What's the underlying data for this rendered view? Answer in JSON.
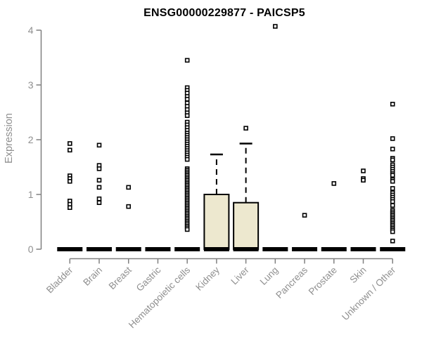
{
  "colors": {
    "box_fill": "#EDE8CF",
    "box_stroke": "#000000",
    "point": "#000000",
    "point_fill": "#FFFFFF",
    "axis": "#808080",
    "axis_text": "#8F8F8F",
    "title": "#000000"
  },
  "chart_data": {
    "type": "boxplot",
    "title": "ENSG00000229877 - PAICSP5",
    "xlabel": "",
    "ylabel": "Expression",
    "ylim": [
      0,
      4
    ],
    "yticks": [
      0,
      1,
      2,
      3,
      4
    ],
    "grid": false,
    "legend": "none",
    "categories": [
      "Bladder",
      "Brain",
      "Breast",
      "Gastric",
      "Hematopoietic cells",
      "Kidney",
      "Liver",
      "Lung",
      "Pancreas",
      "Prostate",
      "Skin",
      "Unknown / Other"
    ],
    "boxes": [
      {
        "category": "Bladder",
        "q1": 0,
        "median": 0,
        "q3": 0,
        "whisker_low": 0,
        "whisker_high": 0,
        "points": [
          1.93,
          1.81,
          1.34,
          1.29,
          1.24,
          0.88,
          0.82,
          0.76
        ]
      },
      {
        "category": "Brain",
        "q1": 0,
        "median": 0,
        "q3": 0,
        "whisker_low": 0,
        "whisker_high": 0,
        "points": [
          1.9,
          1.53,
          1.47,
          1.26,
          1.13,
          0.92,
          0.85
        ]
      },
      {
        "category": "Breast",
        "q1": 0,
        "median": 0,
        "q3": 0,
        "whisker_low": 0,
        "whisker_high": 0,
        "points": [
          1.13,
          0.78
        ]
      },
      {
        "category": "Gastric",
        "q1": 0,
        "median": 0,
        "q3": 0,
        "whisker_low": 0,
        "whisker_high": 0,
        "points": []
      },
      {
        "category": "Hematopoietic cells",
        "q1": 0,
        "median": 0,
        "q3": 0,
        "whisker_low": 0,
        "whisker_high": 0,
        "points": [
          3.45,
          2.95,
          2.9,
          2.85,
          2.79,
          2.74,
          2.67,
          2.61,
          2.55,
          2.49,
          2.44,
          2.32,
          2.27,
          2.22,
          2.17,
          2.12,
          2.08,
          2.04,
          2.0,
          1.96,
          1.92,
          1.88,
          1.84,
          1.8,
          1.76,
          1.72,
          1.68,
          1.64,
          1.47,
          1.44,
          1.41,
          1.38,
          1.35,
          1.32,
          1.29,
          1.26,
          1.23,
          1.2,
          1.17,
          1.14,
          1.11,
          1.08,
          1.05,
          1.02,
          0.99,
          0.96,
          0.93,
          0.9,
          0.87,
          0.84,
          0.81,
          0.78,
          0.75,
          0.72,
          0.69,
          0.66,
          0.63,
          0.6,
          0.57,
          0.54,
          0.51,
          0.48,
          0.45,
          0.42,
          0.39,
          0.36
        ]
      },
      {
        "category": "Kidney",
        "q1": 0,
        "median": 0,
        "q3": 1.0,
        "whisker_low": 0,
        "whisker_high": 1.73,
        "points": []
      },
      {
        "category": "Liver",
        "q1": 0,
        "median": 0,
        "q3": 0.85,
        "whisker_low": 0,
        "whisker_high": 1.93,
        "points": [
          2.21
        ]
      },
      {
        "category": "Lung",
        "q1": 0,
        "median": 0,
        "q3": 0,
        "whisker_low": 0,
        "whisker_high": 0,
        "points": [
          4.07
        ]
      },
      {
        "category": "Pancreas",
        "q1": 0,
        "median": 0,
        "q3": 0,
        "whisker_low": 0,
        "whisker_high": 0,
        "points": [
          0.62
        ]
      },
      {
        "category": "Prostate",
        "q1": 0,
        "median": 0,
        "q3": 0,
        "whisker_low": 0,
        "whisker_high": 0,
        "points": [
          1.2
        ]
      },
      {
        "category": "Skin",
        "q1": 0,
        "median": 0,
        "q3": 0,
        "whisker_low": 0,
        "whisker_high": 0,
        "points": [
          1.43,
          1.29,
          1.26
        ]
      },
      {
        "category": "Unknown / Other",
        "q1": 0,
        "median": 0,
        "q3": 0,
        "whisker_low": 0,
        "whisker_high": 0,
        "points": [
          2.65,
          2.02,
          1.83,
          1.66,
          1.63,
          1.54,
          1.5,
          1.46,
          1.42,
          1.38,
          1.35,
          1.27,
          1.24,
          1.11,
          1.03,
          0.99,
          0.95,
          0.91,
          0.87,
          0.8,
          0.71,
          0.68,
          0.65,
          0.62,
          0.59,
          0.56,
          0.53,
          0.5,
          0.47,
          0.44,
          0.41,
          0.38,
          0.35,
          0.32,
          0.15
        ]
      }
    ]
  }
}
